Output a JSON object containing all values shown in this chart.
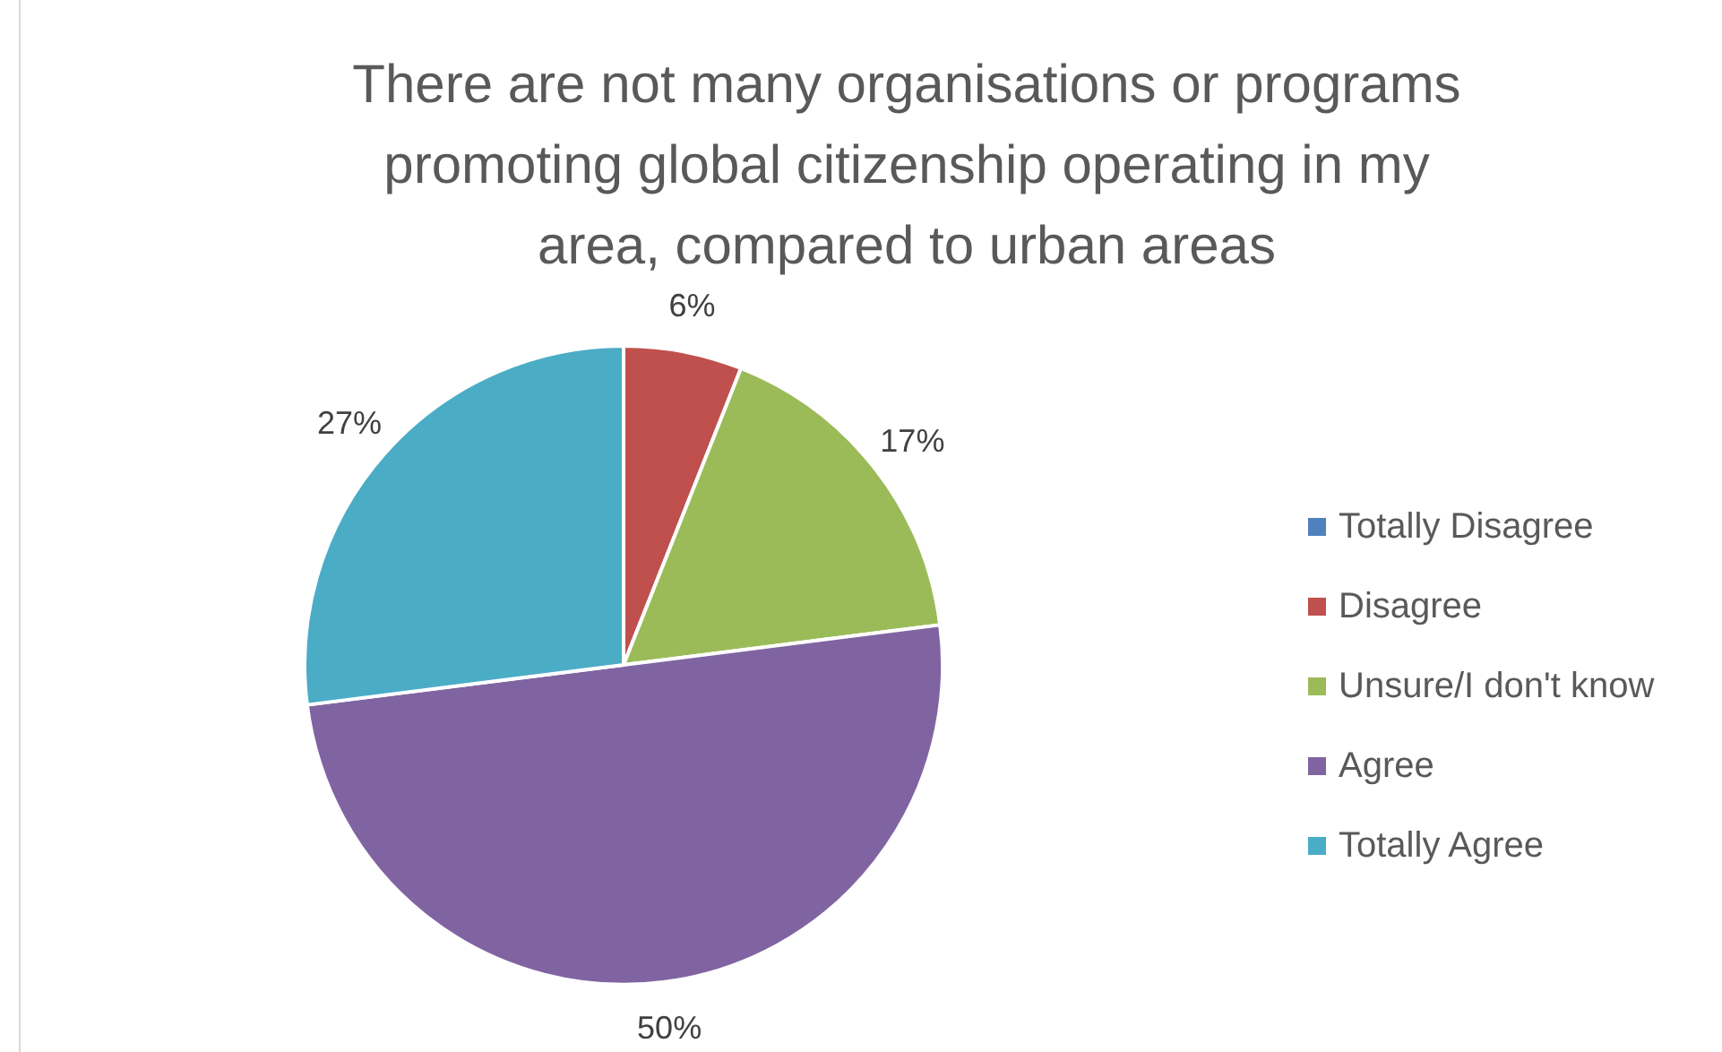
{
  "chart_data": {
    "type": "pie",
    "title": "There are not many organisations or programs promoting global citizenship operating in my area, compared to urban areas",
    "categories": [
      "Totally Disagree",
      "Disagree",
      "Unsure/I don't know",
      "Agree",
      "Totally Agree"
    ],
    "values": [
      0,
      6,
      17,
      50,
      27
    ],
    "colors": [
      "#4f81bd",
      "#c0504d",
      "#9bbb59",
      "#8064a2",
      "#4bacc6"
    ],
    "value_labels": [
      null,
      "6%",
      "17%",
      "50%",
      "27%"
    ],
    "legend": "right"
  }
}
